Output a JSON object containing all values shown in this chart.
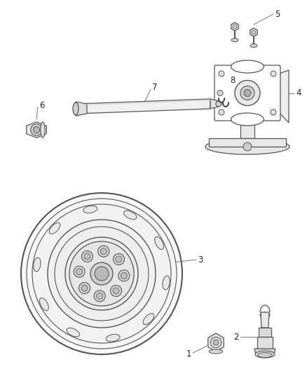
{
  "bg_color": "#ffffff",
  "figsize": [
    4.38,
    5.33
  ],
  "dpi": 100,
  "edge_color": "#555555",
  "label_color": "#222222",
  "label_fontsize": 8.5,
  "line_lw": 0.9
}
